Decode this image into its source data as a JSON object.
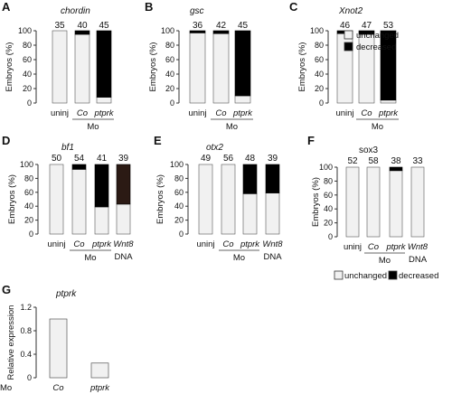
{
  "colors": {
    "unchanged": "#f1f1f1",
    "decreased": "#000000",
    "decreased_wnt8_bl1": "#2b1a14",
    "bar_outline": "#555555",
    "axis": "#333333"
  },
  "legend": {
    "unchanged": "unchanged",
    "decreased": "decreased"
  },
  "chart_data": [
    {
      "panel": "A",
      "gene": "chordin",
      "type": "bar",
      "stacked": true,
      "categories": [
        "uninj",
        "Co",
        "ptprk"
      ],
      "group_label": "Mo",
      "group_span": [
        1,
        2
      ],
      "counts": [
        "35",
        "40",
        "45"
      ],
      "series": [
        {
          "name": "unchanged",
          "values": [
            100,
            95,
            8
          ]
        },
        {
          "name": "decreased",
          "values": [
            0,
            5,
            92
          ]
        }
      ],
      "ylabel": "Embryos (%)",
      "ylim": [
        0,
        100
      ],
      "yticks": [
        "0",
        "20",
        "40",
        "60",
        "80",
        "100"
      ]
    },
    {
      "panel": "B",
      "gene": "gsc",
      "type": "bar",
      "stacked": true,
      "categories": [
        "uninj",
        "Co",
        "ptprk"
      ],
      "group_label": "Mo",
      "group_span": [
        1,
        2
      ],
      "counts": [
        "36",
        "42",
        "45"
      ],
      "series": [
        {
          "name": "unchanged",
          "values": [
            97,
            96,
            10
          ]
        },
        {
          "name": "decreased",
          "values": [
            3,
            4,
            90
          ]
        }
      ],
      "ylabel": "Embryos (%)",
      "ylim": [
        0,
        100
      ],
      "yticks": [
        "0",
        "20",
        "40",
        "60",
        "80",
        "100"
      ]
    },
    {
      "panel": "C",
      "gene": "Xnot2",
      "type": "bar",
      "stacked": true,
      "categories": [
        "uninj",
        "Co",
        "ptprk"
      ],
      "group_label": "Mo",
      "group_span": [
        1,
        2
      ],
      "counts": [
        "46",
        "47",
        "53"
      ],
      "series": [
        {
          "name": "unchanged",
          "values": [
            96,
            95,
            4
          ]
        },
        {
          "name": "decreased",
          "values": [
            4,
            5,
            96
          ]
        }
      ],
      "ylabel": "Embryos (%)",
      "ylim": [
        0,
        100
      ],
      "yticks": [
        "0",
        "20",
        "40",
        "60",
        "80",
        "100"
      ]
    },
    {
      "panel": "D",
      "gene": "bf1",
      "type": "bar",
      "stacked": true,
      "categories": [
        "uninj",
        "Co",
        "ptprk",
        "Wnt8"
      ],
      "group_label": "Mo",
      "group_span": [
        1,
        2
      ],
      "extra_label": "DNA",
      "counts": [
        "50",
        "54",
        "41",
        "39"
      ],
      "series": [
        {
          "name": "unchanged",
          "values": [
            100,
            93,
            39,
            43
          ]
        },
        {
          "name": "decreased",
          "values": [
            0,
            7,
            61,
            57
          ]
        }
      ],
      "ylabel": "Embryos (%)",
      "ylim": [
        0,
        100
      ],
      "yticks": [
        "0",
        "20",
        "40",
        "60",
        "80",
        "100"
      ]
    },
    {
      "panel": "E",
      "gene": "otx2",
      "type": "bar",
      "stacked": true,
      "categories": [
        "uninj",
        "Co",
        "ptprk",
        "Wnt8"
      ],
      "group_label": "Mo",
      "group_span": [
        1,
        2
      ],
      "extra_label": "DNA",
      "counts": [
        "49",
        "56",
        "48",
        "39"
      ],
      "series": [
        {
          "name": "unchanged",
          "values": [
            100,
            100,
            58,
            59
          ]
        },
        {
          "name": "decreased",
          "values": [
            0,
            0,
            42,
            41
          ]
        }
      ],
      "ylabel": "Embryos (%)",
      "ylim": [
        0,
        100
      ],
      "yticks": [
        "0",
        "20",
        "40",
        "60",
        "80",
        "100"
      ]
    },
    {
      "panel": "F",
      "gene": "sox3",
      "type": "bar",
      "stacked": true,
      "categories": [
        "uninj",
        "Co",
        "ptprk",
        "Wnt8"
      ],
      "group_label": "Mo",
      "group_span": [
        1,
        2
      ],
      "extra_label": "DNA",
      "counts": [
        "52",
        "58",
        "38",
        "33"
      ],
      "series": [
        {
          "name": "unchanged",
          "values": [
            100,
            100,
            95,
            100
          ]
        },
        {
          "name": "decreased",
          "values": [
            0,
            0,
            5,
            0
          ]
        }
      ],
      "ylabel": "Embryos (%)",
      "ylim": [
        0,
        100
      ],
      "yticks": [
        "0",
        "20",
        "40",
        "60",
        "80",
        "100"
      ]
    },
    {
      "panel": "G",
      "gene": "ptprk",
      "type": "bar",
      "categories": [
        "Co",
        "ptprk"
      ],
      "row_label": "Mo",
      "values": [
        1.0,
        0.25
      ],
      "ylabel": "Relative expression",
      "ylim": [
        0,
        1.2
      ],
      "yticks": [
        "0",
        "0.4",
        "0.8",
        "1.2"
      ]
    }
  ]
}
